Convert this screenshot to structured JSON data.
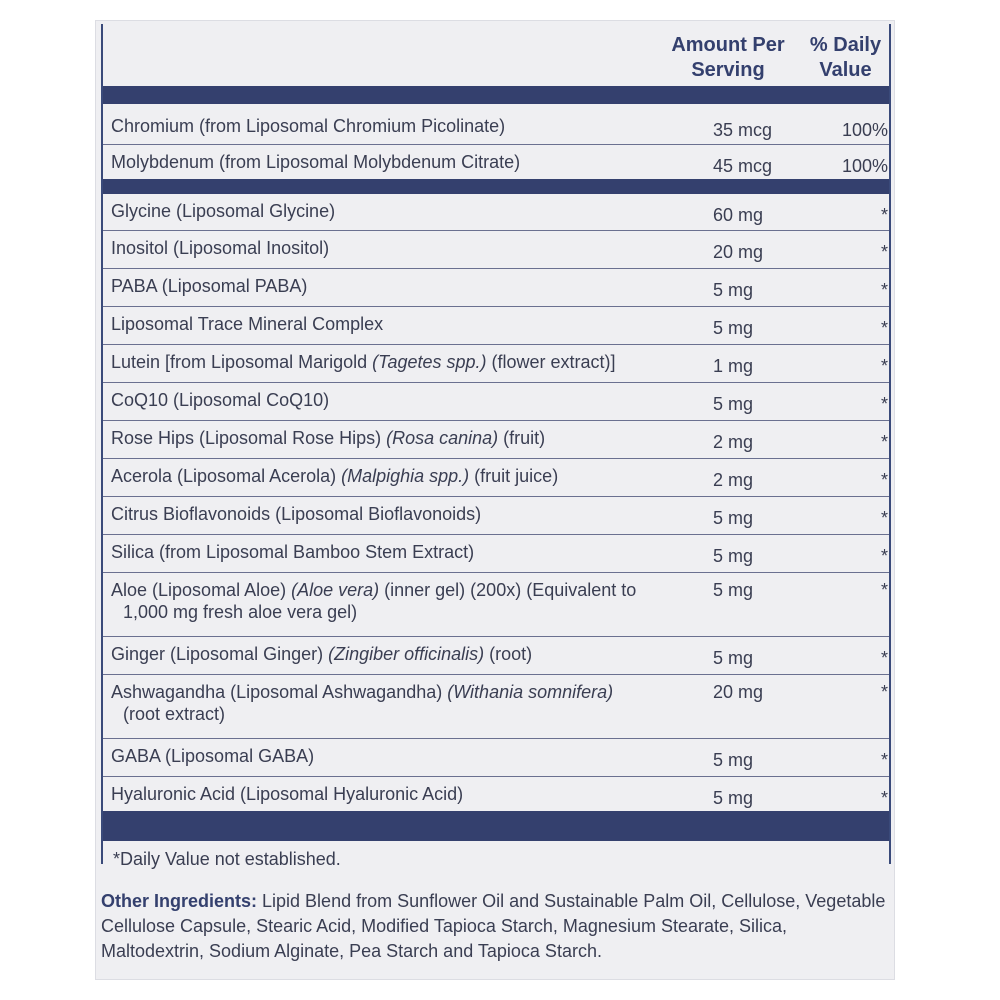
{
  "header": {
    "amount_line1": "Amount Per",
    "amount_line2": "Serving",
    "dv_line1": "% Daily",
    "dv_line2": "Value"
  },
  "rows": [
    {
      "name": "Chromium (from Liposomal Chromium Picolinate)",
      "amount": "35 mcg",
      "dv": "100%"
    },
    {
      "name": "Molybdenum (from Liposomal Molybdenum Citrate)",
      "amount": "45 mcg",
      "dv": "100%"
    },
    {
      "name": "Glycine (Liposomal Glycine)",
      "amount": "60 mg",
      "dv": "*"
    },
    {
      "name": "Inositol (Liposomal Inositol)",
      "amount": "20 mg",
      "dv": "*"
    },
    {
      "name": "PABA (Liposomal PABA)",
      "amount": "5 mg",
      "dv": "*"
    },
    {
      "name": "Liposomal Trace Mineral Complex",
      "amount": "5 mg",
      "dv": "*"
    },
    {
      "name_a": "Lutein [from Liposomal Marigold ",
      "name_i": "(Tagetes spp.)",
      "name_b": " (flower extract)]",
      "amount": "1 mg",
      "dv": "*"
    },
    {
      "name": "CoQ10 (Liposomal CoQ10)",
      "amount": "5 mg",
      "dv": "*"
    },
    {
      "name_a": "Rose Hips (Liposomal Rose Hips) ",
      "name_i": "(Rosa canina)",
      "name_b": " (fruit)",
      "amount": "2 mg",
      "dv": "*"
    },
    {
      "name_a": "Acerola (Liposomal Acerola) ",
      "name_i": "(Malpighia spp.)",
      "name_b": " (fruit juice)",
      "amount": "2 mg",
      "dv": "*"
    },
    {
      "name": "Citrus Bioflavonoids (Liposomal Bioflavonoids)",
      "amount": "5 mg",
      "dv": "*"
    },
    {
      "name": "Silica (from Liposomal Bamboo Stem Extract)",
      "amount": "5 mg",
      "dv": "*"
    },
    {
      "name_a": "Aloe (Liposomal Aloe) ",
      "name_i": "(Aloe vera)",
      "name_b": " (inner gel) (200x) (Equivalent to",
      "name_c": "1,000 mg fresh aloe vera gel)",
      "amount": "5 mg",
      "dv": "*"
    },
    {
      "name_a": "Ginger (Liposomal Ginger) ",
      "name_i": "(Zingiber officinalis)",
      "name_b": " (root)",
      "amount": "5 mg",
      "dv": "*"
    },
    {
      "name_a": "Ashwagandha (Liposomal Ashwagandha) ",
      "name_i": "(Withania somnifera)",
      "name_b": "",
      "name_c": "(root extract)",
      "amount": "20 mg",
      "dv": "*"
    },
    {
      "name": "GABA (Liposomal GABA)",
      "amount": "5 mg",
      "dv": "*"
    },
    {
      "name": "Hyaluronic Acid (Liposomal Hyaluronic Acid)",
      "amount": "5 mg",
      "dv": "*"
    }
  ],
  "footnote": "*Daily Value not established.",
  "other": {
    "label": "Other Ingredients:",
    "text": " Lipid Blend from Sunflower Oil and Sustainable Palm Oil, Cellulose, Vegetable Cellulose Capsule, Stearic Acid, Modified Tapioca Starch, Magnesium Stearate, Silica, Maltodextrin, Sodium Alginate, Pea Starch and Tapioca Starch."
  },
  "colors": {
    "accent": "#34406e",
    "background": "#efeff2",
    "text": "#3a3e52"
  }
}
